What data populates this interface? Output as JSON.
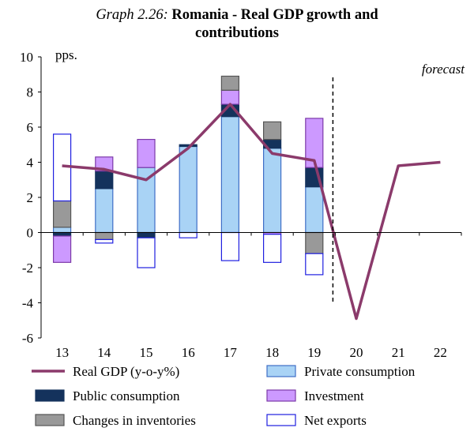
{
  "chart_data": {
    "type": "bar",
    "title_prefix": "Graph 2.26:",
    "title_line1": "Romania - Real GDP growth and",
    "title_line2": "contributions",
    "ylabel": "pps.",
    "annotation": "forecast",
    "ylim": [
      -6,
      10
    ],
    "yticks": [
      -6,
      -4,
      -2,
      0,
      2,
      4,
      6,
      8,
      10
    ],
    "categories": [
      "13",
      "14",
      "15",
      "16",
      "17",
      "18",
      "19",
      "20",
      "21",
      "22"
    ],
    "forecast_start_index": 7,
    "stack_order": [
      "Private consumption",
      "Public consumption",
      "Investment",
      "Changes in inventories",
      "Net exports"
    ],
    "series": [
      {
        "name": "Private consumption",
        "type": "bar",
        "color": "#a9d3f5",
        "edge": "#3f6fc6",
        "values": [
          0.3,
          2.5,
          3.7,
          4.9,
          6.6,
          4.8,
          2.6,
          null,
          null,
          null
        ]
      },
      {
        "name": "Public consumption",
        "type": "bar",
        "color": "#14325c",
        "edge": "#14325c",
        "values": [
          -0.2,
          1.0,
          -0.3,
          0.1,
          0.7,
          0.5,
          1.1,
          null,
          null,
          null
        ]
      },
      {
        "name": "Investment",
        "type": "bar",
        "color": "#cc99ff",
        "edge": "#7c3aa8",
        "values": [
          -1.5,
          0.8,
          1.6,
          0.0,
          0.8,
          -0.1,
          2.8,
          null,
          null,
          null
        ]
      },
      {
        "name": "Changes in inventories",
        "type": "bar",
        "color": "#999999",
        "edge": "#555555",
        "values": [
          1.5,
          -0.4,
          0.0,
          0.0,
          0.8,
          1.0,
          -1.2,
          null,
          null,
          null
        ]
      },
      {
        "name": "Net exports",
        "type": "bar",
        "color": "#ffffff",
        "edge": "#1f1fe0",
        "values": [
          3.8,
          -0.2,
          -1.7,
          -0.3,
          -1.6,
          -1.6,
          -1.2,
          null,
          null,
          null
        ]
      },
      {
        "name": "Real GDP (y-o-y%)",
        "type": "line",
        "color": "#8b3a6b",
        "values": [
          3.8,
          3.6,
          3.0,
          4.8,
          7.3,
          4.5,
          4.1,
          -4.9,
          3.8,
          4.0
        ]
      }
    ],
    "legend": [
      {
        "label": "Real GDP (y-o-y%)",
        "kind": "line",
        "color": "#8b3a6b",
        "edge": "#8b3a6b"
      },
      {
        "label": "Private consumption",
        "kind": "box",
        "color": "#a9d3f5",
        "edge": "#3f6fc6"
      },
      {
        "label": "Public consumption",
        "kind": "box",
        "color": "#14325c",
        "edge": "#14325c"
      },
      {
        "label": "Investment",
        "kind": "box",
        "color": "#cc99ff",
        "edge": "#7c3aa8"
      },
      {
        "label": "Changes in inventories",
        "kind": "box",
        "color": "#999999",
        "edge": "#555555"
      },
      {
        "label": "Net exports",
        "kind": "box",
        "color": "#ffffff",
        "edge": "#1f1fe0"
      }
    ]
  }
}
